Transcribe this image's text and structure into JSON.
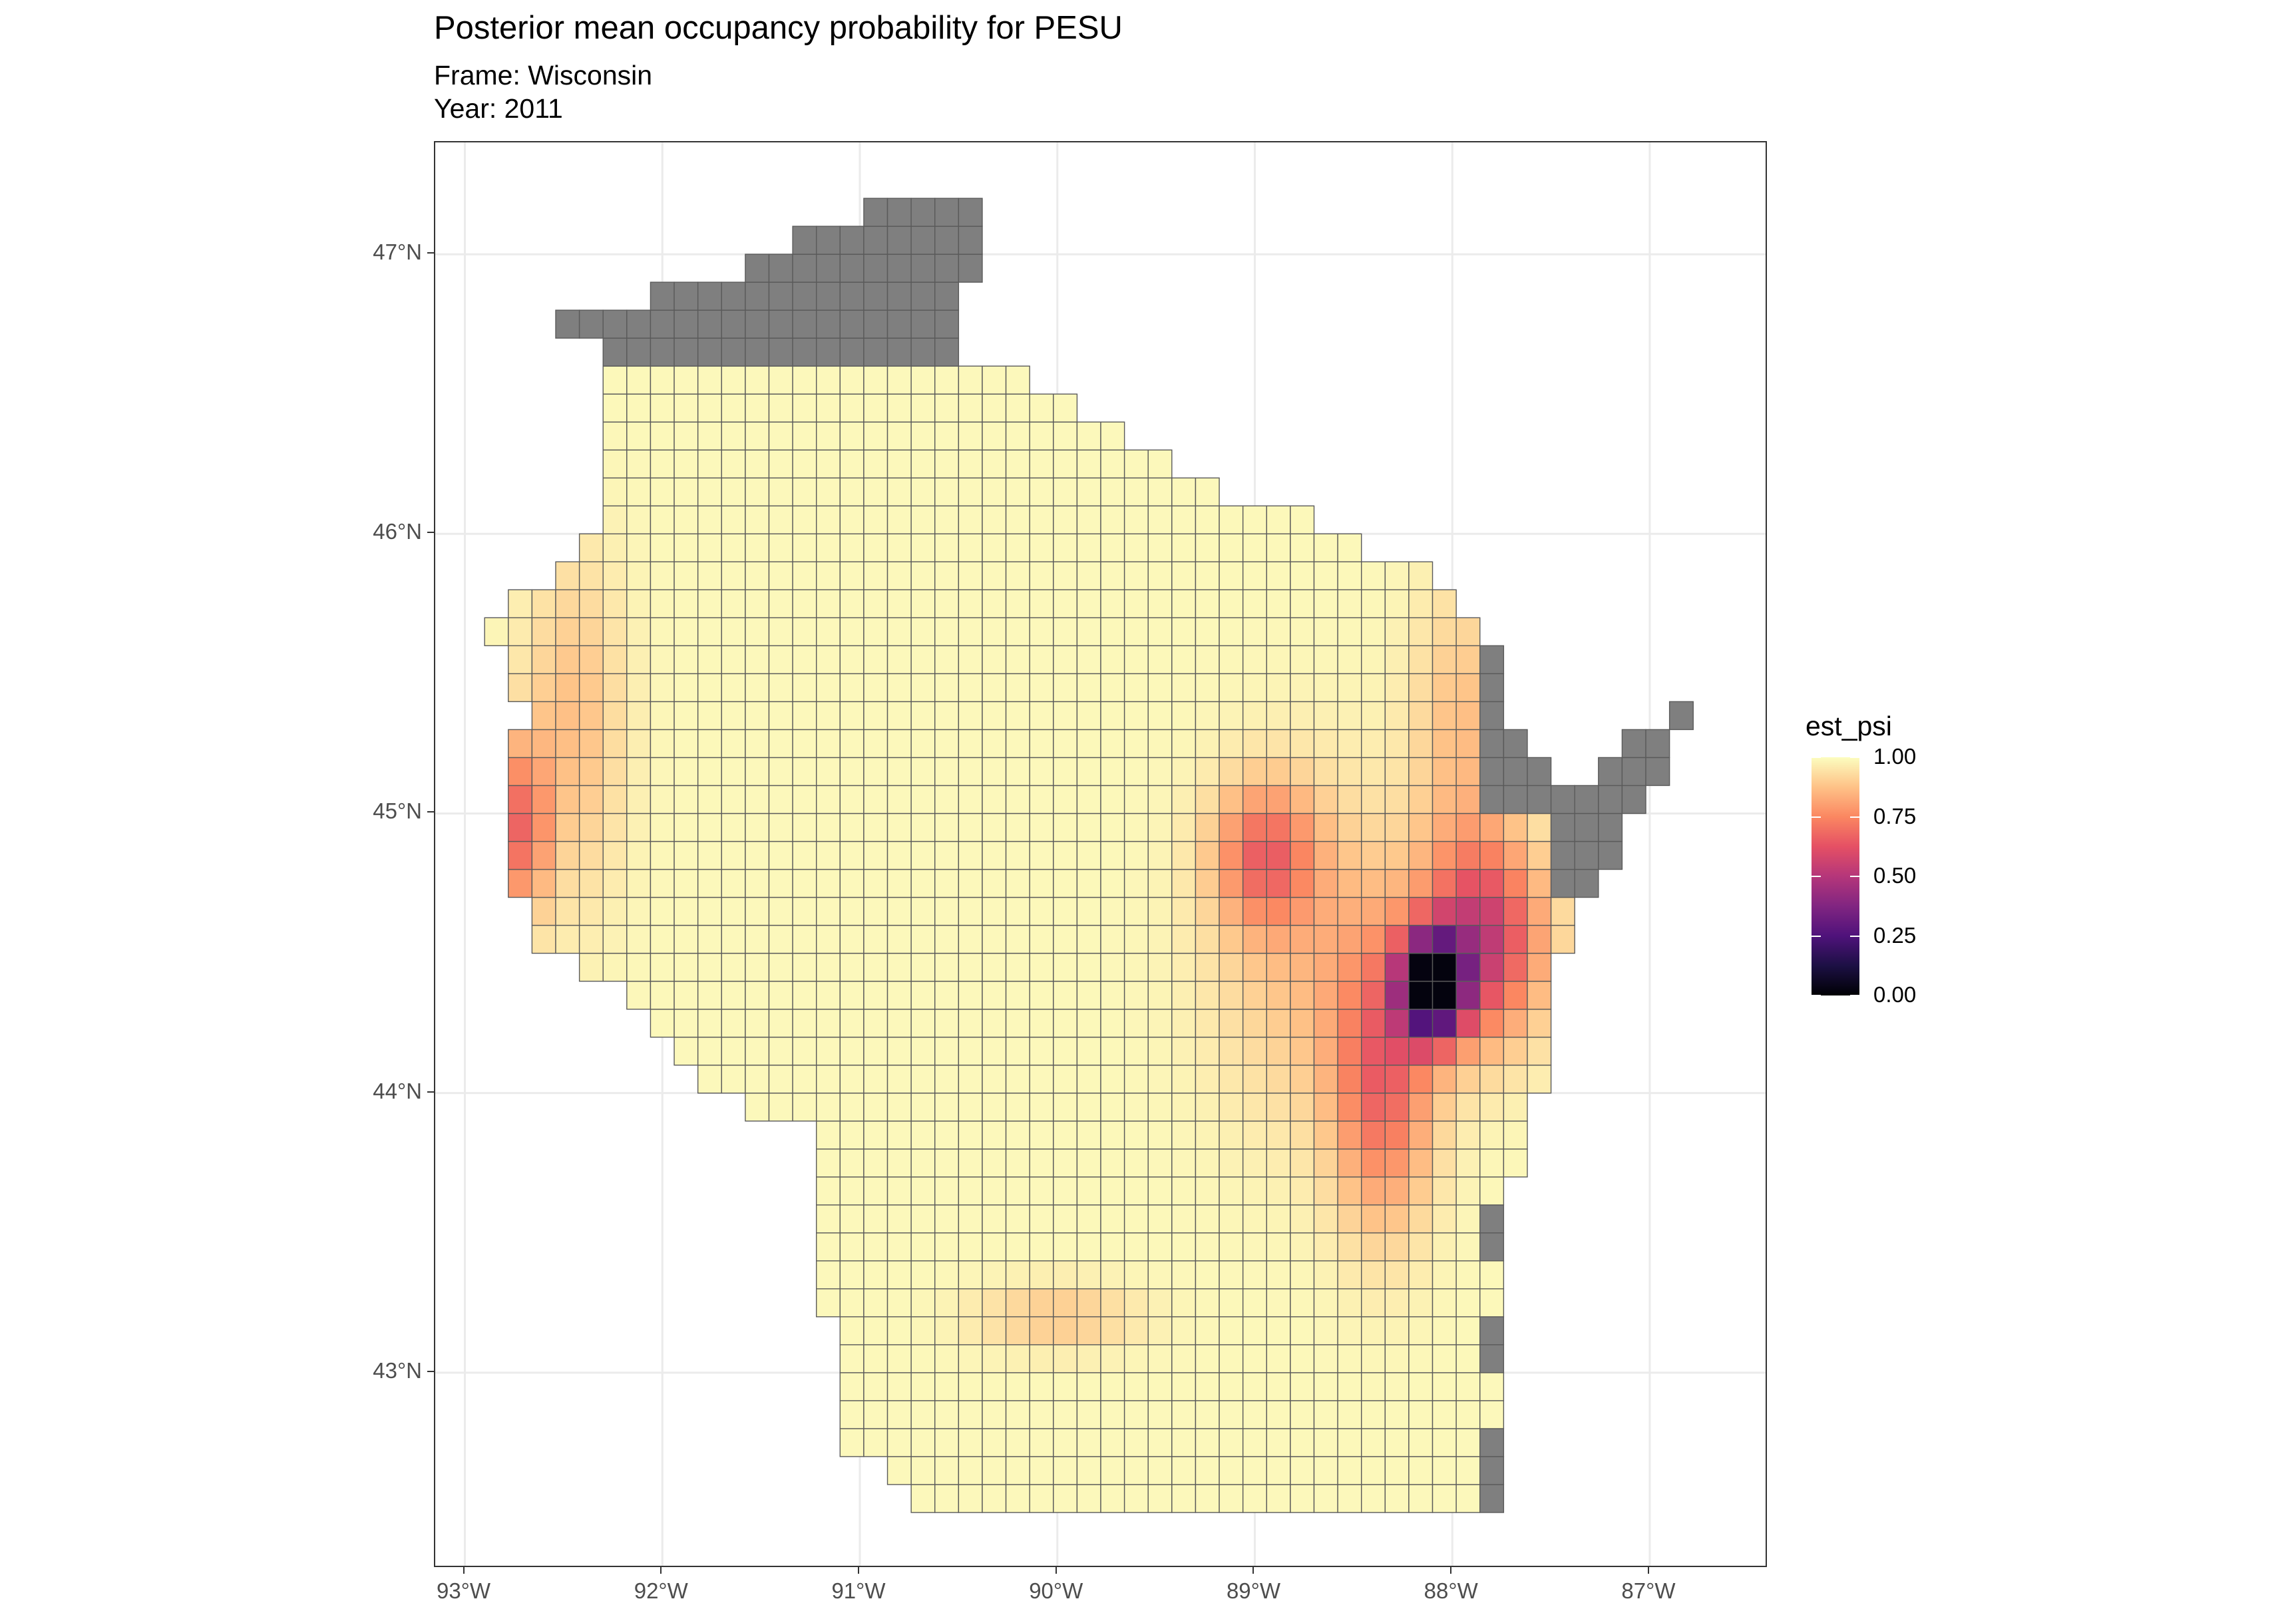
{
  "title": "Posterior mean occupancy probability for PESU",
  "subtitle_frame": "Frame: Wisconsin",
  "subtitle_year": "Year: 2011",
  "chart_data": {
    "type": "heatmap",
    "title": "Posterior mean occupancy probability for PESU",
    "x_axis": {
      "ticks": [
        {
          "value": -93,
          "label": "93°W"
        },
        {
          "value": -92,
          "label": "92°W"
        },
        {
          "value": -91,
          "label": "91°W"
        },
        {
          "value": -90,
          "label": "90°W"
        },
        {
          "value": -89,
          "label": "89°W"
        },
        {
          "value": -88,
          "label": "88°W"
        },
        {
          "value": -87,
          "label": "87°W"
        }
      ],
      "range": [
        -93.15,
        -86.4
      ]
    },
    "y_axis": {
      "ticks": [
        {
          "value": 43,
          "label": "43°N"
        },
        {
          "value": 44,
          "label": "44°N"
        },
        {
          "value": 45,
          "label": "45°N"
        },
        {
          "value": 46,
          "label": "46°N"
        },
        {
          "value": 47,
          "label": "47°N"
        }
      ],
      "range": [
        42.3,
        47.4
      ]
    },
    "legend": {
      "title": "est_psi",
      "placement": "right",
      "labels": [
        "1.00",
        "0.75",
        "0.50",
        "0.25",
        "0.00"
      ],
      "values": [
        1.0,
        0.75,
        0.5,
        0.25,
        0.0
      ],
      "scale": "magma",
      "na_color": "#7f7f7f"
    },
    "grid": true,
    "cell_size_deg": {
      "lon": 0.12,
      "lat": 0.1
    },
    "colors": {
      "magma_stops": [
        "#000004",
        "#1c1044",
        "#4f127b",
        "#812581",
        "#b5367a",
        "#e55064",
        "#fb8761",
        "#fec287",
        "#fcfdbf"
      ]
    },
    "region_notes": "Values estimated visually: northern Lake Superior counties and eastern lake shoreline are missing (grey); strong dip near Green Bay / Lake Winnebago (~0.05-0.5); moderate dips in central Wisconsin (~0.7) and western border (~0.7)."
  }
}
